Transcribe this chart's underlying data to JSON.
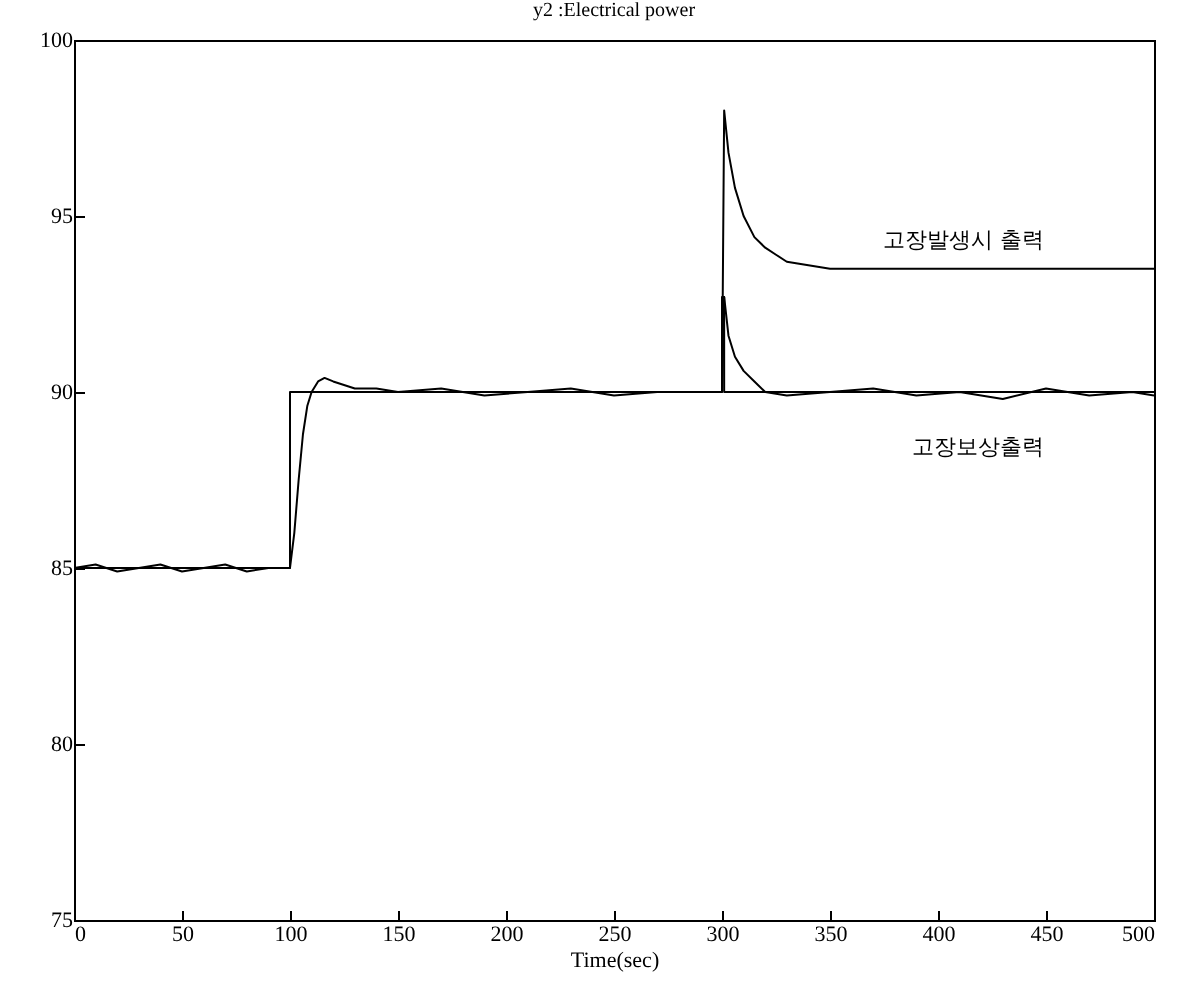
{
  "chart_data": {
    "type": "line",
    "title": "y2 :Electrical power",
    "xlabel": "Time(sec)",
    "xlim": [
      0,
      500
    ],
    "xticks": [
      0,
      50,
      100,
      150,
      200,
      250,
      300,
      350,
      400,
      450,
      500
    ],
    "ylim": [
      75,
      100
    ],
    "yticks": [
      75,
      80,
      85,
      90,
      95,
      100
    ],
    "grid": false,
    "series": [
      {
        "type": "step",
        "color": "#000000",
        "x": [
          0,
          100,
          300,
          300,
          301,
          500
        ],
        "values": [
          85,
          90,
          90,
          92.7,
          90,
          90
        ]
      },
      {
        "name": "고장발생시 출력",
        "color": "#000000",
        "x": [
          300,
          301,
          303,
          306,
          310,
          315,
          320,
          325,
          330,
          340,
          350,
          370,
          400,
          430,
          460,
          500
        ],
        "values": [
          90,
          98,
          96.8,
          95.8,
          95,
          94.4,
          94.1,
          93.9,
          93.7,
          93.6,
          93.5,
          93.5,
          93.5,
          93.5,
          93.5,
          93.5
        ]
      },
      {
        "name": "고장보상출력",
        "color": "#000000",
        "x": [
          0,
          10,
          20,
          30,
          40,
          50,
          60,
          70,
          80,
          90,
          100,
          102,
          104,
          106,
          108,
          110,
          113,
          116,
          120,
          125,
          130,
          140,
          150,
          170,
          190,
          210,
          230,
          250,
          270,
          290,
          300,
          301,
          303,
          306,
          310,
          315,
          320,
          330,
          350,
          370,
          390,
          410,
          430,
          450,
          470,
          490,
          500
        ],
        "values": [
          85,
          85.1,
          84.9,
          85,
          85.1,
          84.9,
          85,
          85.1,
          84.9,
          85,
          85,
          86,
          87.5,
          88.8,
          89.6,
          90,
          90.3,
          90.4,
          90.3,
          90.2,
          90.1,
          90.1,
          90,
          90.1,
          89.9,
          90,
          90.1,
          89.9,
          90,
          90,
          90,
          92.7,
          91.6,
          91,
          90.6,
          90.3,
          90,
          89.9,
          90,
          90.1,
          89.9,
          90,
          89.8,
          90.1,
          89.9,
          90,
          89.9
        ]
      }
    ]
  }
}
